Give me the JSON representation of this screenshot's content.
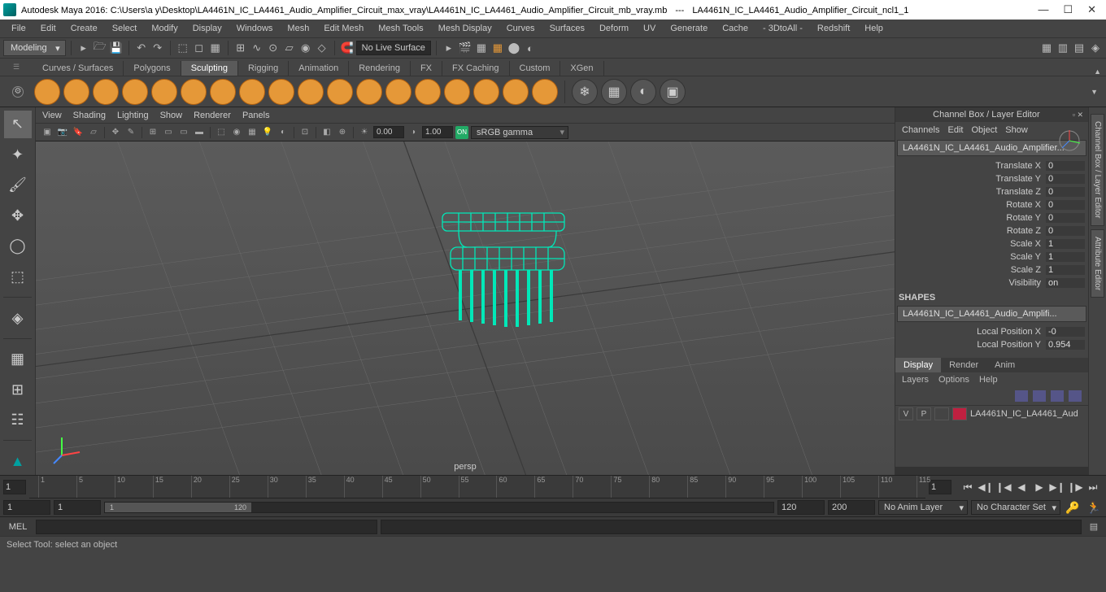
{
  "window": {
    "app": "Autodesk Maya 2016:",
    "path": "C:\\Users\\a y\\Desktop\\LA4461N_IC_LA4461_Audio_Amplifier_Circuit_max_vray\\LA4461N_IC_LA4461_Audio_Amplifier_Circuit_mb_vray.mb",
    "scene_separator": "---",
    "scene": "LA4461N_IC_LA4461_Audio_Amplifier_Circuit_ncl1_1"
  },
  "menubar": [
    "File",
    "Edit",
    "Create",
    "Select",
    "Modify",
    "Display",
    "Windows",
    "Mesh",
    "Edit Mesh",
    "Mesh Tools",
    "Mesh Display",
    "Curves",
    "Surfaces",
    "Deform",
    "UV",
    "Generate",
    "Cache",
    "- 3DtoAll -",
    "Redshift",
    "Help"
  ],
  "statusbar": {
    "mode": "Modeling",
    "surface_text": "No Live Surface"
  },
  "shelf_tabs": [
    "Curves / Surfaces",
    "Polygons",
    "Sculpting",
    "Rigging",
    "Animation",
    "Rendering",
    "FX",
    "FX Caching",
    "Custom",
    "XGen"
  ],
  "shelf_active": "Sculpting",
  "viewport": {
    "menus": [
      "View",
      "Shading",
      "Lighting",
      "Show",
      "Renderer",
      "Panels"
    ],
    "field1": "0.00",
    "field2": "1.00",
    "colorspace": "sRGB gamma",
    "camera_label": "persp",
    "grid_color": "#6a6a6a",
    "bg_top": "#5b5b5b",
    "bg_bottom": "#4a4a4a",
    "model_wire_color": "#00e8b8"
  },
  "channelbox": {
    "title": "Channel Box / Layer Editor",
    "tabs": [
      "Channels",
      "Edit",
      "Object",
      "Show"
    ],
    "object": "LA4461N_IC_LA4461_Audio_Amplifier...",
    "attrs": [
      {
        "label": "Translate X",
        "value": "0"
      },
      {
        "label": "Translate Y",
        "value": "0"
      },
      {
        "label": "Translate Z",
        "value": "0"
      },
      {
        "label": "Rotate X",
        "value": "0"
      },
      {
        "label": "Rotate Y",
        "value": "0"
      },
      {
        "label": "Rotate Z",
        "value": "0"
      },
      {
        "label": "Scale X",
        "value": "1"
      },
      {
        "label": "Scale Y",
        "value": "1"
      },
      {
        "label": "Scale Z",
        "value": "1"
      },
      {
        "label": "Visibility",
        "value": "on"
      }
    ],
    "shapes_header": "SHAPES",
    "shape_name": "LA4461N_IC_LA4461_Audio_Amplifi...",
    "shape_attrs": [
      {
        "label": "Local Position X",
        "value": "-0"
      },
      {
        "label": "Local Position Y",
        "value": "0.954"
      }
    ],
    "disp_tabs": [
      "Display",
      "Render",
      "Anim"
    ],
    "disp_active": "Display",
    "layer_menus": [
      "Layers",
      "Options",
      "Help"
    ],
    "layer": {
      "v": "V",
      "p": "P",
      "name": "LA4461N_IC_LA4461_Aud",
      "color": "#c02040"
    }
  },
  "side_tabs": [
    "Channel Box / Layer Editor",
    "Attribute Editor"
  ],
  "timeline": {
    "current": "1",
    "ticks": [
      1,
      5,
      10,
      15,
      20,
      25,
      30,
      35,
      40,
      45,
      50,
      55,
      60,
      65,
      70,
      75,
      80,
      85,
      90,
      95,
      100,
      105,
      110,
      115
    ],
    "range_start": "1",
    "range_end": "120",
    "anim_start": "1",
    "anim_end": "120",
    "total_end": "200",
    "anim_layer": "No Anim Layer",
    "char_set": "No Character Set"
  },
  "cmdline": {
    "lang": "MEL"
  },
  "helpline": "Select Tool: select an object"
}
